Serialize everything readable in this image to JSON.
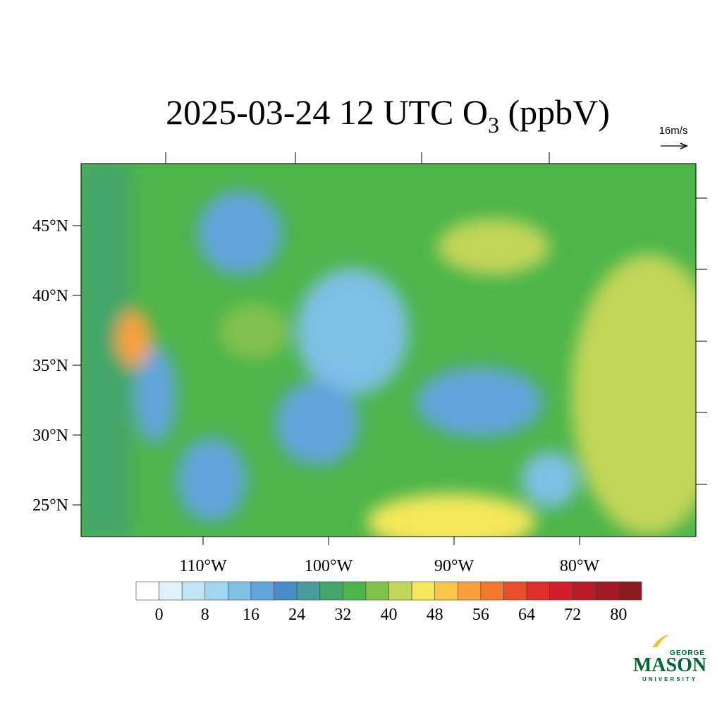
{
  "chart_data": {
    "type": "map",
    "title": {
      "main": "2025-03-24 12 UTC O",
      "subscript": "3",
      "tail": " (ppbV)"
    },
    "wind_reference": "16m/s",
    "xlim": [
      -119.72,
      -70.73
    ],
    "ylim": [
      22.73,
      49.44
    ],
    "xticks": [
      {
        "value": -110,
        "label": "110°W"
      },
      {
        "value": -100,
        "label": "100°W"
      },
      {
        "value": -90,
        "label": "90°W"
      },
      {
        "value": -80,
        "label": "80°W"
      }
    ],
    "yticks": [
      {
        "value": 25,
        "label": "25°N"
      },
      {
        "value": 30,
        "label": "30°N"
      },
      {
        "value": 35,
        "label": "35°N"
      },
      {
        "value": 40,
        "label": "40°N"
      },
      {
        "value": 45,
        "label": "45°N"
      }
    ],
    "colorbar": {
      "range": [
        -4,
        84
      ],
      "step": 4,
      "colors": [
        "#ffffff",
        "#dff3fb",
        "#c0e6f6",
        "#9fd6f1",
        "#80bfe6",
        "#62a4dc",
        "#4a8cc9",
        "#4a9c9c",
        "#43a56a",
        "#4cb54a",
        "#83c14d",
        "#c2d659",
        "#f5e85a",
        "#f9c44a",
        "#f8a03f",
        "#f4772f",
        "#e94d2a",
        "#dc3028",
        "#d21f2a",
        "#b91c27",
        "#a11b25",
        "#8c1a1e"
      ],
      "ticks": [
        0,
        8,
        16,
        24,
        32,
        40,
        48,
        56,
        64,
        72,
        80
      ]
    },
    "logo": {
      "top": "GEORGE",
      "main": "MASON",
      "bottom": "UNIVERSITY"
    }
  }
}
